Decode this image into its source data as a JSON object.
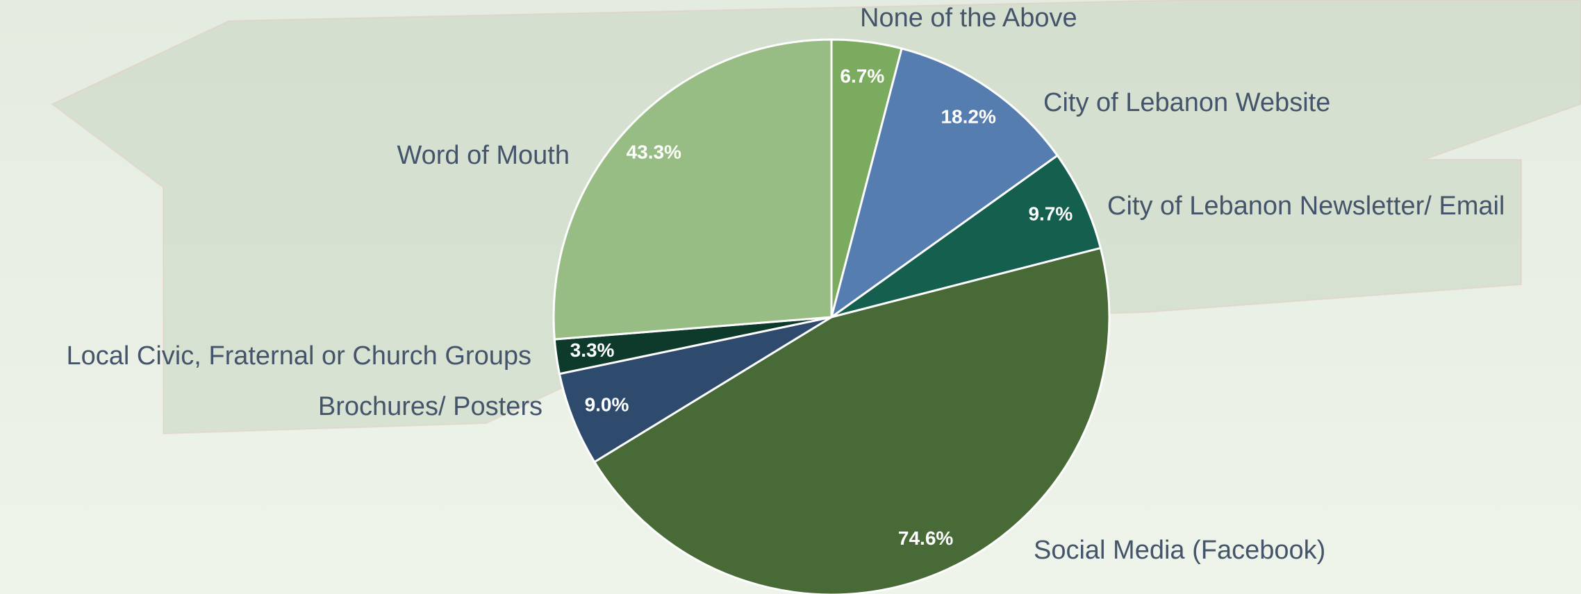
{
  "chart_data": {
    "type": "pie",
    "categories": [
      "None of the Above",
      "City of Lebanon Website",
      "City of Lebanon Newsletter/ Email",
      "Social Media (Facebook)",
      "Brochures/ Posters",
      "Local Civic, Fraternal or Church Groups",
      "Word of Mouth"
    ],
    "values": [
      6.7,
      18.2,
      9.7,
      74.6,
      9.0,
      3.3,
      43.3
    ],
    "value_labels": [
      "6.7%",
      "18.2%",
      "9.7%",
      "74.6%",
      "9.0%",
      "3.3%",
      "43.3%"
    ],
    "colors": [
      "#7aab5e",
      "#557db0",
      "#155f4f",
      "#486a37",
      "#2e4a6c",
      "#0d3a2a",
      "#97bd84"
    ]
  }
}
